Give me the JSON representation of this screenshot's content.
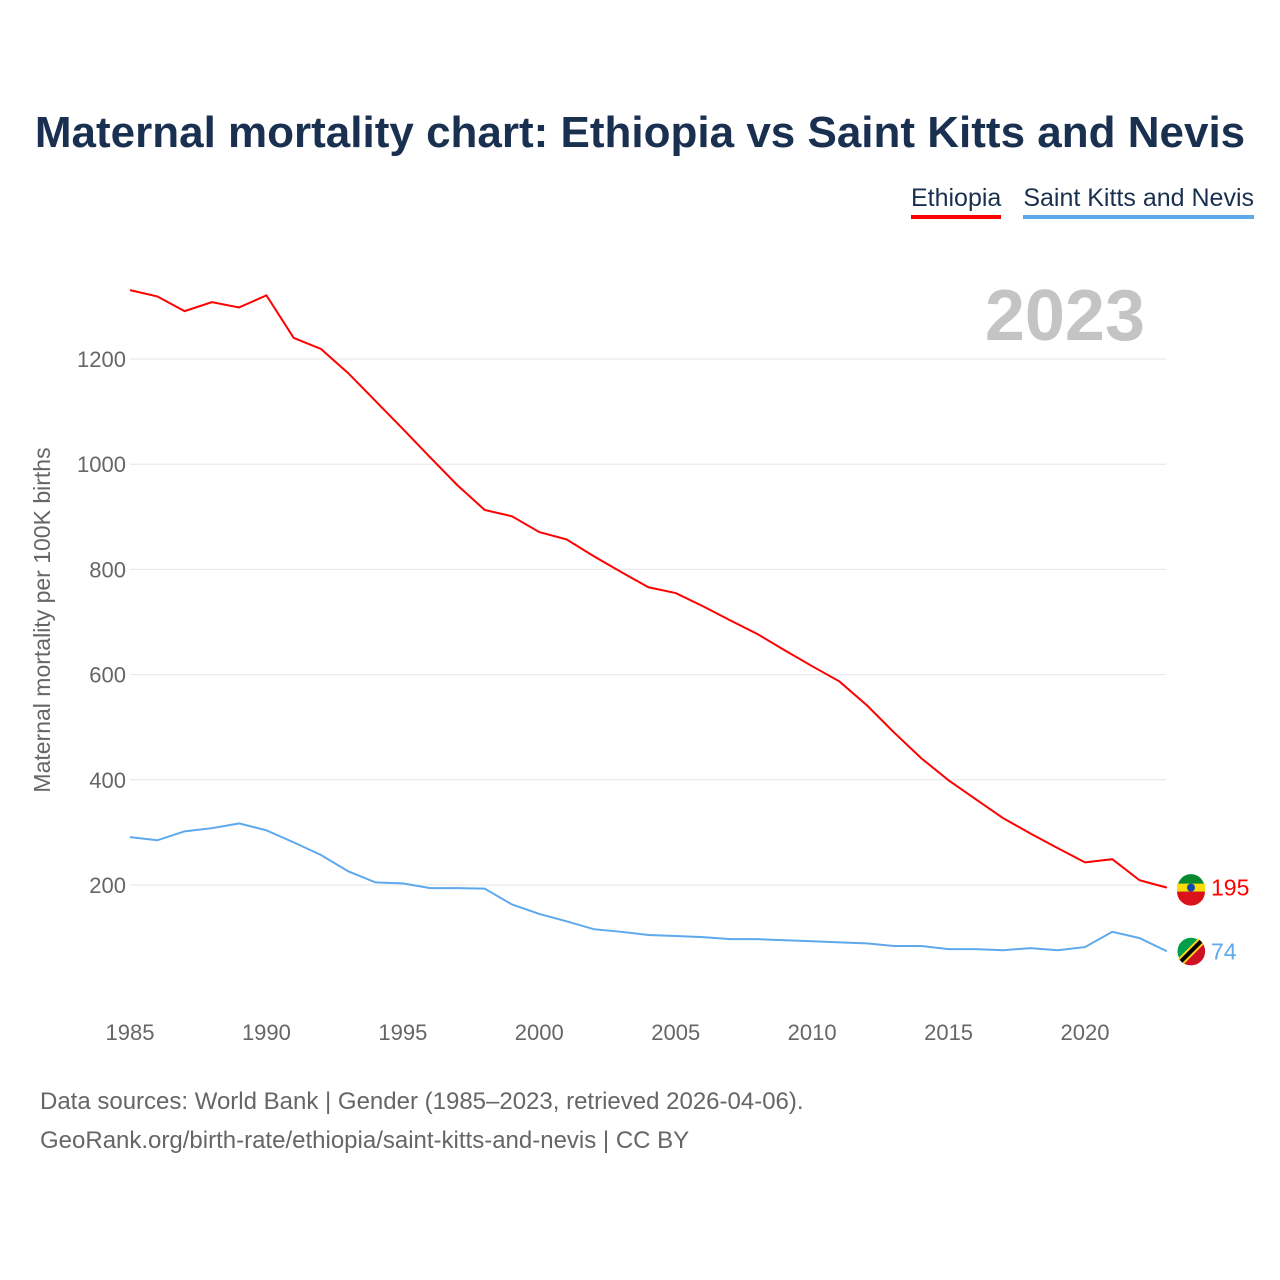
{
  "chart_data": {
    "type": "line",
    "title": "Maternal mortality chart: Ethiopia vs Saint Kitts and Nevis",
    "ylabel": "Maternal mortality per 100K births",
    "xlabel": "",
    "year_label": "2023",
    "ylim": [
      0,
      1400
    ],
    "xlim": [
      1985,
      2023
    ],
    "yticks": [
      200,
      400,
      600,
      800,
      1000,
      1200
    ],
    "xticks": [
      1985,
      1990,
      1995,
      2000,
      2005,
      2010,
      2015,
      2020
    ],
    "grid": true,
    "legend_position": "top-right",
    "x": [
      1985,
      1986,
      1987,
      1988,
      1989,
      1990,
      1991,
      1992,
      1993,
      1994,
      1995,
      1996,
      1997,
      1998,
      1999,
      2000,
      2001,
      2002,
      2003,
      2004,
      2005,
      2006,
      2007,
      2008,
      2009,
      2010,
      2011,
      2012,
      2013,
      2014,
      2015,
      2016,
      2017,
      2018,
      2019,
      2020,
      2021,
      2022,
      2023
    ],
    "series": [
      {
        "name": "Ethiopia",
        "color": "#ff0000",
        "end_label": "195",
        "values": [
          1331,
          1319,
          1291,
          1308,
          1298,
          1321,
          1240,
          1219,
          1173,
          1120,
          1067,
          1013,
          960,
          913,
          901,
          871,
          857,
          825,
          795,
          766,
          755,
          730,
          703,
          677,
          646,
          616,
          587,
          542,
          490,
          441,
          399,
          363,
          327,
          298,
          270,
          243,
          249,
          209,
          195
        ]
      },
      {
        "name": "Saint Kitts and Nevis",
        "color": "#5ea8ec",
        "end_label": "74",
        "values": [
          291,
          285,
          302,
          308,
          317,
          304,
          281,
          257,
          226,
          205,
          203,
          194,
          194,
          193,
          163,
          145,
          131,
          116,
          111,
          105,
          103,
          101,
          97,
          97,
          95,
          93,
          91,
          89,
          84,
          84,
          78,
          78,
          76,
          80,
          76,
          82,
          111,
          99,
          74
        ]
      }
    ]
  },
  "footer": {
    "line1": "Data sources: World Bank | Gender (1985–2023, retrieved 2026-04-06).",
    "line2": "GeoRank.org/birth-rate/ethiopia/saint-kitts-and-nevis | CC BY"
  }
}
